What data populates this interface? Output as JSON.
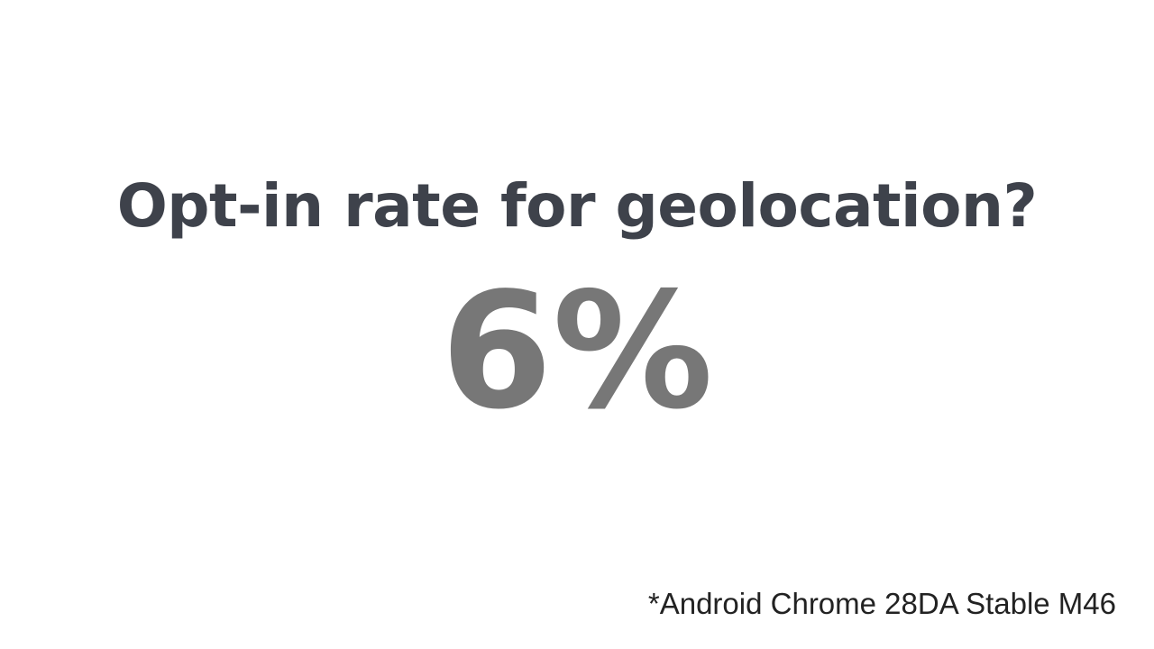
{
  "slide": {
    "title": "Opt-in rate for geolocation?",
    "stat": "6%",
    "footnote": "*Android Chrome 28DA Stable M46"
  },
  "colors": {
    "background": "#ffffff",
    "title": "#3e424b",
    "stat": "#777777",
    "footnote": "#222222"
  }
}
